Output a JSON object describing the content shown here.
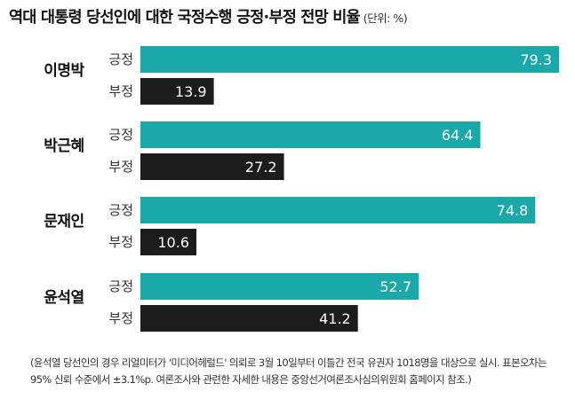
{
  "title": "역대 대통령 당선인에 대한 국정수행 긍정·부정 전망 비율",
  "unit": "(단위: %)",
  "colors": {
    "positive": "#1aa8a8",
    "negative": "#1c1c1c",
    "label": "#333333"
  },
  "chart_data": {
    "type": "bar",
    "orientation": "horizontal",
    "categories": [
      "이명박",
      "박근혜",
      "문재인",
      "윤석열"
    ],
    "series": [
      {
        "name": "긍정",
        "values": [
          79.3,
          64.4,
          74.8,
          52.7
        ]
      },
      {
        "name": "부정",
        "values": [
          13.9,
          27.2,
          10.6,
          41.2
        ]
      }
    ],
    "xlim": [
      0,
      79.3
    ],
    "grid": false,
    "legend": "none"
  },
  "note": "(윤석열 당선인의 경우 리얼미터가 '미디어헤럴드' 의뢰로 3월 10일부터 이틀간 전국 유권자 1018명을 대상으로 실시. 표본오차는 95% 신뢰 수준에서 ±3.1%p. 여론조사와 관련한 자세한 내용은 중앙선거여론조사심의위원회 홈페이지 참조.)"
}
